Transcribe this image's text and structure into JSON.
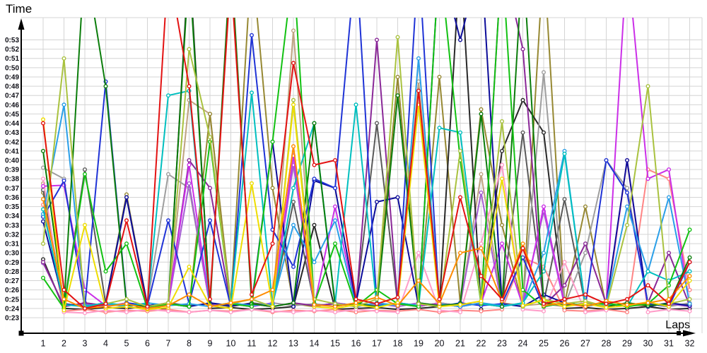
{
  "axis_titles": {
    "y": "Time",
    "x": "Laps"
  },
  "style": {
    "background": "#ffffff",
    "grid_color": "#d4d4d4",
    "axis_color": "#000000",
    "marker_fill": "#ffffff"
  },
  "chart_data": {
    "type": "line",
    "title": "",
    "xlabel": "Laps",
    "ylabel": "Time",
    "grid": true,
    "legend": "none",
    "x": [
      1,
      2,
      3,
      4,
      5,
      6,
      7,
      8,
      9,
      10,
      11,
      12,
      13,
      14,
      15,
      16,
      17,
      18,
      19,
      20,
      21,
      22,
      23,
      24,
      25,
      26,
      27,
      28,
      29,
      30,
      31,
      32
    ],
    "y_tick_labels": [
      "0:23",
      "0:24",
      "0:25",
      "0:26",
      "0:27",
      "0:28",
      "0:29",
      "0:30",
      "0:31",
      "0:32",
      "0:33",
      "0:34",
      "0:35",
      "0:36",
      "0:37",
      "0:38",
      "0:39",
      "0:40",
      "0:41",
      "0:42",
      "0:43",
      "0:44",
      "0:45",
      "0:46",
      "0:47",
      "0:48",
      "0:49",
      "0:50",
      "0:51",
      "0:52",
      "0:53"
    ],
    "y_min": 23,
    "y_axis_unit": "minutes:seconds",
    "clip_note": "values above ~0:55 exit the top of the plot (rendered clipped)",
    "series": [
      {
        "name": "red",
        "color": "#e31212",
        "values": [
          44,
          26,
          24,
          24.5,
          33.5,
          24.2,
          61,
          48,
          25,
          60,
          25.5,
          31,
          50.5,
          39.5,
          40,
          25,
          24.5,
          25.2,
          47.5,
          25,
          36,
          27.5,
          25,
          30.5,
          24.5,
          25,
          25.5,
          24.5,
          25,
          26.5,
          24.5,
          29
        ]
      },
      {
        "name": "orange",
        "color": "#ff8c00",
        "values": [
          35.8,
          25,
          24,
          24.2,
          24.5,
          24,
          24.3,
          25.5,
          24.2,
          24.6,
          25,
          26,
          41.5,
          24.4,
          24.2,
          24.6,
          25.2,
          24.3,
          27,
          24.5,
          30,
          30.5,
          24.8,
          31,
          24.3,
          24.6,
          24.2,
          24.8,
          24.4,
          24.6,
          25,
          27.5
        ]
      },
      {
        "name": "yellow",
        "color": "#eedd00",
        "values": [
          44.4,
          23.8,
          33,
          24,
          24.2,
          23.9,
          24.1,
          28.5,
          24.3,
          24,
          37.5,
          24.2,
          46,
          24.2,
          24,
          24.4,
          24.1,
          24.6,
          46,
          24.2,
          24.4,
          24.8,
          38,
          24.3,
          24.9,
          24.2,
          24.5,
          24.1,
          24.3,
          24.7,
          24.2,
          27
        ]
      },
      {
        "name": "yellowgreen",
        "color": "#a9c23f",
        "values": [
          31,
          51,
          24,
          24.5,
          25,
          24.2,
          24.6,
          52,
          42.5,
          24.5,
          25,
          24.2,
          46.5,
          25,
          24.5,
          24.2,
          25,
          53.3,
          24.5,
          24.2,
          41,
          24.6,
          44.2,
          24.2,
          25,
          24.5,
          24.8,
          24.2,
          33,
          48,
          24.5,
          25
        ]
      },
      {
        "name": "green",
        "color": "#12c112",
        "values": [
          27.3,
          24,
          38.5,
          28,
          31,
          24,
          24.5,
          24.2,
          42,
          24.5,
          24.2,
          42,
          61,
          24.5,
          31,
          24.2,
          26,
          24.5,
          24.2,
          62,
          40,
          24.5,
          62,
          26,
          24.2,
          24.6,
          24.3,
          24.6,
          24.2,
          24.5,
          26.5,
          32.5
        ]
      },
      {
        "name": "darkgreen",
        "color": "#0b7d0b",
        "values": [
          41,
          24.3,
          62,
          48,
          24.4,
          24.2,
          24.6,
          61,
          24.3,
          62,
          24.5,
          24.2,
          24.6,
          44,
          24.3,
          24.5,
          24.2,
          47,
          24.6,
          24.3,
          24.5,
          45,
          24.2,
          62,
          24.6,
          24.3,
          24.5,
          24.2,
          24.6,
          24.3,
          24.5,
          29.5
        ]
      },
      {
        "name": "cyan",
        "color": "#00bfbf",
        "values": [
          34.7,
          24.4,
          24.2,
          24.6,
          24.3,
          24.5,
          47,
          47.5,
          24.2,
          24.6,
          47.3,
          24.3,
          37,
          44,
          24.5,
          46,
          24.2,
          24.6,
          24.3,
          43.5,
          43,
          24.5,
          24.2,
          24.6,
          28,
          40.7,
          24.3,
          24.5,
          24.2,
          28,
          27,
          28
        ]
      },
      {
        "name": "skyblue",
        "color": "#2a9fe8",
        "values": [
          34.2,
          46,
          24.3,
          24.5,
          24.2,
          24.6,
          24.3,
          24.5,
          24.2,
          24.6,
          24.3,
          24.5,
          33,
          29,
          33.5,
          24.2,
          24.6,
          24.3,
          51,
          24.5,
          24.2,
          24.6,
          24.3,
          24.5,
          30,
          41,
          24.2,
          24.6,
          35,
          28,
          36,
          24.5
        ]
      },
      {
        "name": "blue",
        "color": "#1f33d6",
        "values": [
          33.9,
          37.8,
          24.2,
          48.5,
          24.6,
          24.3,
          33.5,
          24.5,
          33.5,
          24.2,
          53.5,
          32.5,
          28.5,
          38,
          37,
          62,
          24.3,
          24.5,
          62,
          24.2,
          24.6,
          24.3,
          24.5,
          29.5,
          24.2,
          24.6,
          24.3,
          40,
          36.5,
          24.5,
          24.2,
          29
        ]
      },
      {
        "name": "navy",
        "color": "#0c0c99",
        "values": [
          33.4,
          24.5,
          24.2,
          24.6,
          36,
          24.3,
          24.5,
          24.2,
          24.6,
          24.3,
          24.5,
          42,
          24.2,
          37.8,
          37,
          24.6,
          35.5,
          36,
          24.3,
          62,
          53,
          62,
          24.5,
          24.2,
          25.5,
          24.6,
          24.3,
          24.5,
          40,
          24.2,
          24.6,
          24.3
        ]
      },
      {
        "name": "magenta",
        "color": "#cb2fe8",
        "values": [
          37.2,
          37.3,
          26,
          24.3,
          24.5,
          24.2,
          24.6,
          39.5,
          24.3,
          24.5,
          24.2,
          24.6,
          40.5,
          24.3,
          35,
          24.5,
          24.2,
          24.6,
          24.3,
          24.5,
          24.2,
          24.6,
          31,
          24.3,
          35,
          24.5,
          24.2,
          24.6,
          62,
          38,
          39,
          24.3
        ]
      },
      {
        "name": "purple",
        "color": "#8a2898",
        "values": [
          29,
          24.2,
          24.6,
          24.3,
          24.5,
          24.2,
          24.6,
          40,
          37,
          24.3,
          24.5,
          24.2,
          24.6,
          24.3,
          24.5,
          24.2,
          53,
          24.6,
          24.3,
          24.5,
          24.2,
          24.6,
          62,
          52,
          24.3,
          26.5,
          31,
          24.5,
          24.2,
          24.6,
          30,
          24.3
        ]
      },
      {
        "name": "violet",
        "color": "#a55fd2",
        "values": [
          28.9,
          24.3,
          24.5,
          24.2,
          24.6,
          24.3,
          24.5,
          37.5,
          24.2,
          24.6,
          24.3,
          24.5,
          39.5,
          24.2,
          24.6,
          24.3,
          24.5,
          24.2,
          24.6,
          24.3,
          24.5,
          36.5,
          24.2,
          24.6,
          34.5,
          24.3,
          24.5,
          24.2,
          24.6,
          24.3,
          24.5,
          24.2
        ]
      },
      {
        "name": "pink",
        "color": "#ff9cc8",
        "values": [
          38,
          23.6,
          23.5,
          23.8,
          23.6,
          23.9,
          23.7,
          23.6,
          23.8,
          23.6,
          23.9,
          23.7,
          23.6,
          23.8,
          23.6,
          23.9,
          23.7,
          23.6,
          30,
          23.8,
          23.6,
          31,
          39.5,
          23.9,
          23.7,
          29,
          23.6,
          23.8,
          40,
          23.6,
          23.9,
          23.7
        ]
      },
      {
        "name": "salmon",
        "color": "#ff8585",
        "values": [
          35.2,
          23.7,
          23.9,
          23.6,
          23.8,
          23.7,
          23.9,
          23.6,
          23.8,
          23.7,
          23.9,
          23.6,
          23.8,
          23.7,
          23.9,
          23.6,
          23.8,
          23.7,
          23.9,
          23.6,
          23.8,
          23.7,
          23.9,
          29.5,
          28.5,
          23.8,
          23.7,
          23.9,
          23.6,
          39,
          38,
          26
        ]
      },
      {
        "name": "gray",
        "color": "#9e9e9e",
        "values": [
          39.2,
          38,
          24.1,
          24.5,
          24.2,
          24.6,
          38.5,
          37,
          24.3,
          24.5,
          24.2,
          24.6,
          24.3,
          24.5,
          24.2,
          24.6,
          24.3,
          24.5,
          24.2,
          24.6,
          24.3,
          24.5,
          24.2,
          24.6,
          49.5,
          24.3,
          30,
          40,
          37,
          24.5,
          24.2,
          24.6
        ]
      },
      {
        "name": "darkgray",
        "color": "#5a5a5a",
        "values": [
          36.8,
          24.3,
          39,
          24.5,
          36,
          24.2,
          24.6,
          24.3,
          24.5,
          24.2,
          24.6,
          24.3,
          35.5,
          24.5,
          24.2,
          24.6,
          44,
          24.5,
          24.2,
          24.6,
          24.3,
          24.5,
          24.2,
          43,
          24.6,
          35.8,
          24.3,
          24.5,
          24.2,
          24.6,
          24.3,
          24.5
        ]
      },
      {
        "name": "black",
        "color": "#282828",
        "values": [
          29.3,
          24,
          23.9,
          24.1,
          24,
          24.2,
          23.9,
          62,
          24,
          24.1,
          23.9,
          24,
          24.2,
          33,
          23.9,
          24,
          24.1,
          23.9,
          24,
          24.2,
          62,
          23.9,
          41,
          46.5,
          43,
          24,
          24.1,
          23.9,
          24,
          24.2,
          23.9,
          24
        ]
      },
      {
        "name": "olive",
        "color": "#968832",
        "values": [
          36.5,
          24.5,
          24.2,
          24.6,
          36.3,
          24.3,
          24.5,
          24.2,
          45,
          24.6,
          62,
          37,
          24.5,
          24.2,
          24.6,
          24.3,
          24.5,
          49,
          24.2,
          49,
          24.6,
          45.5,
          33,
          24.3,
          62,
          24.5,
          35,
          24.2,
          24.6,
          24.3,
          24.5,
          24.2
        ]
      },
      {
        "name": "tan",
        "color": "#bfa380",
        "values": [
          37.5,
          24.2,
          24.6,
          24.3,
          24.5,
          24.2,
          24.6,
          46.5,
          45,
          24.3,
          24.5,
          24.2,
          54,
          24.3,
          24.5,
          24.2,
          24.6,
          24.3,
          48.5,
          24.5,
          24.2,
          38.5,
          24.6,
          24.3,
          24.5,
          24.2,
          24.6,
          24.3,
          24.5,
          24.2,
          24.6,
          24.3
        ]
      }
    ]
  }
}
